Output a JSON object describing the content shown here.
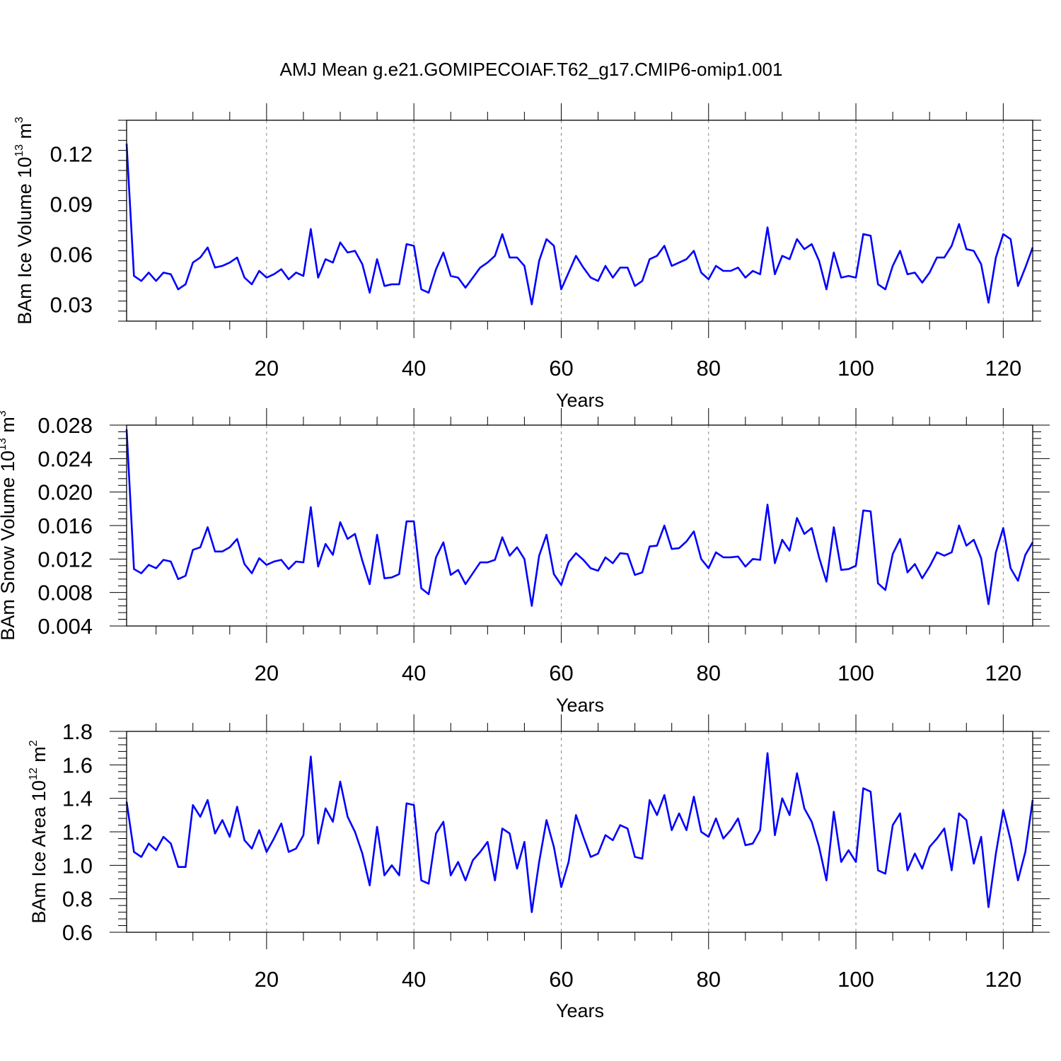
{
  "figure": {
    "title": "AMJ Mean g.e21.GOMIPECOIAF.T62_g17.CMIP6-omip1.001"
  },
  "colors": {
    "line": "#0000ff",
    "axis": "#000000",
    "grid": "#888888"
  },
  "chart_data": [
    {
      "type": "line",
      "ylabel": {
        "main": "BAm Ice Volume 10",
        "exp": "13",
        "unit": " m",
        "unit_exp": "3"
      },
      "xlabel": "Years",
      "xlim": [
        1,
        124
      ],
      "ylim": [
        0.02,
        0.14
      ],
      "xticks": [
        20,
        40,
        60,
        80,
        100,
        120
      ],
      "xtick_labels": [
        "20",
        "40",
        "60",
        "80",
        "100",
        "120"
      ],
      "yticks": [
        0.03,
        0.06,
        0.09,
        0.12
      ],
      "ytick_labels": [
        "0.03",
        "0.06",
        "0.09",
        "0.12"
      ],
      "grid": "vertical dashed at x ticks",
      "series": [
        {
          "name": "BAm Ice Volume",
          "x_start": 1,
          "values": [
            0.126,
            0.047,
            0.044,
            0.049,
            0.044,
            0.049,
            0.048,
            0.039,
            0.042,
            0.055,
            0.058,
            0.064,
            0.052,
            0.053,
            0.055,
            0.058,
            0.046,
            0.042,
            0.05,
            0.046,
            0.048,
            0.051,
            0.045,
            0.049,
            0.047,
            0.075,
            0.046,
            0.057,
            0.055,
            0.067,
            0.061,
            0.062,
            0.054,
            0.037,
            0.057,
            0.041,
            0.042,
            0.042,
            0.066,
            0.065,
            0.039,
            0.037,
            0.051,
            0.061,
            0.047,
            0.046,
            0.04,
            0.046,
            0.052,
            0.055,
            0.059,
            0.072,
            0.058,
            0.058,
            0.053,
            0.03,
            0.056,
            0.069,
            0.065,
            0.039,
            0.049,
            0.059,
            0.052,
            0.046,
            0.044,
            0.053,
            0.046,
            0.052,
            0.052,
            0.041,
            0.044,
            0.057,
            0.059,
            0.065,
            0.053,
            0.055,
            0.057,
            0.062,
            0.049,
            0.045,
            0.053,
            0.05,
            0.05,
            0.052,
            0.046,
            0.05,
            0.048,
            0.076,
            0.048,
            0.059,
            0.057,
            0.069,
            0.063,
            0.066,
            0.056,
            0.039,
            0.061,
            0.046,
            0.047,
            0.046,
            0.072,
            0.071,
            0.042,
            0.039,
            0.053,
            0.062,
            0.048,
            0.049,
            0.043,
            0.049,
            0.058,
            0.058,
            0.065,
            0.078,
            0.063,
            0.062,
            0.054,
            0.031,
            0.058,
            0.072,
            0.069,
            0.041,
            0.052,
            0.064
          ]
        }
      ]
    },
    {
      "type": "line",
      "ylabel": {
        "main": "BAm Snow Volume 10",
        "exp": "13",
        "unit": " m",
        "unit_exp": "3"
      },
      "xlabel": "Years",
      "xlim": [
        1,
        124
      ],
      "ylim": [
        0.004,
        0.028
      ],
      "xticks": [
        20,
        40,
        60,
        80,
        100,
        120
      ],
      "xtick_labels": [
        "20",
        "40",
        "60",
        "80",
        "100",
        "120"
      ],
      "yticks": [
        0.004,
        0.008,
        0.012,
        0.016,
        0.02,
        0.024,
        0.028
      ],
      "ytick_labels": [
        "0.004",
        "0.008",
        "0.012",
        "0.016",
        "0.020",
        "0.024",
        "0.028"
      ],
      "grid": "vertical dashed at x ticks",
      "series": [
        {
          "name": "BAm Snow Volume",
          "x_start": 1,
          "values": [
            0.0275,
            0.0108,
            0.0103,
            0.0113,
            0.0109,
            0.0119,
            0.0117,
            0.0096,
            0.01,
            0.0131,
            0.0134,
            0.0158,
            0.0129,
            0.0129,
            0.0134,
            0.0144,
            0.0114,
            0.0103,
            0.0121,
            0.0113,
            0.0117,
            0.0119,
            0.0108,
            0.0117,
            0.0116,
            0.0182,
            0.0111,
            0.0138,
            0.0125,
            0.0164,
            0.0144,
            0.015,
            0.0118,
            0.009,
            0.0149,
            0.0097,
            0.0098,
            0.0102,
            0.0165,
            0.0165,
            0.0085,
            0.0078,
            0.0122,
            0.014,
            0.0101,
            0.0107,
            0.009,
            0.0103,
            0.0116,
            0.0116,
            0.0119,
            0.0146,
            0.0124,
            0.0134,
            0.012,
            0.0064,
            0.0124,
            0.0149,
            0.0102,
            0.0089,
            0.0116,
            0.0127,
            0.0119,
            0.0109,
            0.0106,
            0.0122,
            0.0115,
            0.0127,
            0.0126,
            0.0101,
            0.0104,
            0.0135,
            0.0136,
            0.016,
            0.0132,
            0.0133,
            0.0141,
            0.0153,
            0.012,
            0.0109,
            0.0128,
            0.0122,
            0.0122,
            0.0123,
            0.0111,
            0.012,
            0.0119,
            0.0185,
            0.0115,
            0.0143,
            0.013,
            0.0169,
            0.015,
            0.0157,
            0.0122,
            0.0093,
            0.0158,
            0.0107,
            0.0108,
            0.0112,
            0.0178,
            0.0177,
            0.0091,
            0.0083,
            0.0126,
            0.0144,
            0.0104,
            0.0114,
            0.0097,
            0.0111,
            0.0128,
            0.0124,
            0.0128,
            0.016,
            0.0136,
            0.0143,
            0.0121,
            0.0066,
            0.0128,
            0.0157,
            0.0109,
            0.0094,
            0.0125,
            0.014
          ]
        }
      ]
    },
    {
      "type": "line",
      "ylabel": {
        "main": "BAm Ice Area 10",
        "exp": "12",
        "unit": " m",
        "unit_exp": "2"
      },
      "xlabel": "Years",
      "xlim": [
        1,
        124
      ],
      "ylim": [
        0.6,
        1.8
      ],
      "xticks": [
        20,
        40,
        60,
        80,
        100,
        120
      ],
      "xtick_labels": [
        "20",
        "40",
        "60",
        "80",
        "100",
        "120"
      ],
      "yticks": [
        0.6,
        0.8,
        1.0,
        1.2,
        1.4,
        1.6,
        1.8
      ],
      "ytick_labels": [
        "0.6",
        "0.8",
        "1.0",
        "1.2",
        "1.4",
        "1.6",
        "1.8"
      ],
      "grid": "vertical dashed at x ticks",
      "series": [
        {
          "name": "BAm Ice Area",
          "x_start": 1,
          "values": [
            1.38,
            1.08,
            1.05,
            1.13,
            1.09,
            1.17,
            1.13,
            0.99,
            0.99,
            1.36,
            1.29,
            1.39,
            1.19,
            1.27,
            1.17,
            1.35,
            1.15,
            1.1,
            1.21,
            1.08,
            1.16,
            1.25,
            1.08,
            1.1,
            1.18,
            1.65,
            1.13,
            1.34,
            1.26,
            1.5,
            1.29,
            1.2,
            1.07,
            0.88,
            1.23,
            0.94,
            1.0,
            0.94,
            1.37,
            1.36,
            0.91,
            0.89,
            1.19,
            1.26,
            0.94,
            1.02,
            0.91,
            1.03,
            1.08,
            1.14,
            0.91,
            1.22,
            1.19,
            0.98,
            1.14,
            0.72,
            1.02,
            1.27,
            1.11,
            0.87,
            1.02,
            1.3,
            1.17,
            1.05,
            1.07,
            1.18,
            1.15,
            1.24,
            1.22,
            1.05,
            1.04,
            1.39,
            1.3,
            1.42,
            1.21,
            1.31,
            1.21,
            1.41,
            1.2,
            1.17,
            1.28,
            1.16,
            1.21,
            1.28,
            1.12,
            1.13,
            1.21,
            1.67,
            1.18,
            1.4,
            1.3,
            1.55,
            1.34,
            1.26,
            1.11,
            0.91,
            1.32,
            1.02,
            1.09,
            1.02,
            1.46,
            1.44,
            0.97,
            0.95,
            1.24,
            1.31,
            0.97,
            1.07,
            0.98,
            1.11,
            1.16,
            1.22,
            0.97,
            1.31,
            1.27,
            1.01,
            1.17,
            0.75,
            1.07,
            1.33,
            1.15,
            0.91,
            1.08,
            1.39
          ]
        }
      ]
    }
  ]
}
